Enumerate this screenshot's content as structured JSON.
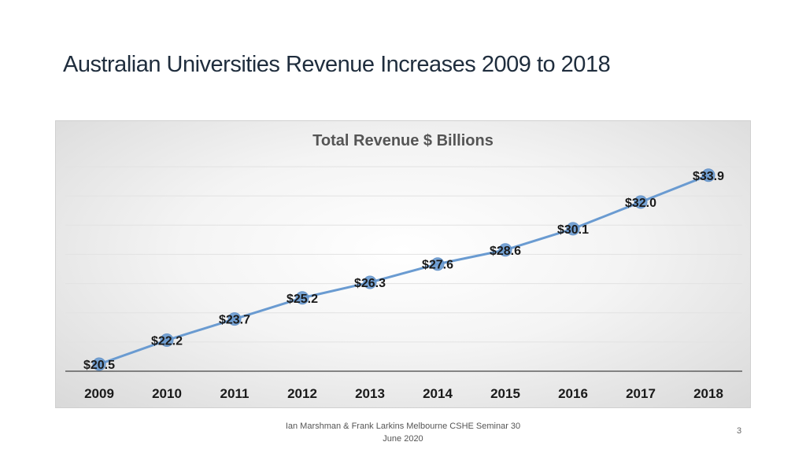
{
  "slide": {
    "title": "Australian Universities Revenue Increases 2009 to 2018",
    "footer": "Ian Marshman & Frank Larkins Melbourne CSHE Seminar 30 June 2020",
    "page_number": "3"
  },
  "chart_data": {
    "type": "line",
    "title": "Total Revenue $ Billions",
    "categories": [
      "2009",
      "2010",
      "2011",
      "2012",
      "2013",
      "2014",
      "2015",
      "2016",
      "2017",
      "2018"
    ],
    "values": [
      20.5,
      22.2,
      23.7,
      25.2,
      26.3,
      27.6,
      28.6,
      30.1,
      32.0,
      33.9
    ],
    "labels": [
      "$20.5",
      "$22.2",
      "$23.7",
      "$25.2",
      "$26.3",
      "$27.6",
      "$28.6",
      "$30.1",
      "$32.0",
      "$33.9"
    ],
    "ylim": [
      20,
      34.5
    ],
    "colors": {
      "line": "#6a9bd1",
      "marker": "#6a9bd1",
      "label": "#1a1a1a"
    },
    "grid": true,
    "legend": "none"
  }
}
